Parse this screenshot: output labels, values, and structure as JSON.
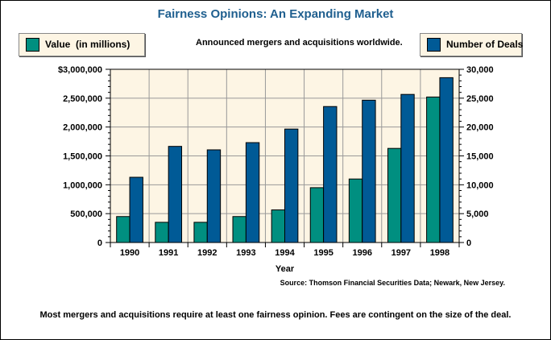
{
  "title": "Fairness Opinions: An Expanding Market",
  "subtitle": "Announced mergers and acquisitions worldwide.",
  "source": "Source: Thomson Financial Securities Data; Newark, New Jersey.",
  "note": "Most mergers and acquisitions require at least one fairness opinion. Fees are contingent on the size of the deal.",
  "chart_data": {
    "type": "bar",
    "xlabel": "Year",
    "categories": [
      "1990",
      "1991",
      "1992",
      "1993",
      "1994",
      "1995",
      "1996",
      "1997",
      "1998"
    ],
    "series": [
      {
        "name": "Value  (in millions)",
        "axis": "left",
        "color": "#008f80",
        "values": [
          450000,
          350000,
          350000,
          450000,
          565000,
          950000,
          1100000,
          1630000,
          2520000
        ]
      },
      {
        "name": "Number of Deals",
        "axis": "right",
        "color": "#005a96",
        "values": [
          11300,
          16650,
          16050,
          17300,
          19650,
          23550,
          24650,
          25650,
          28550
        ]
      }
    ],
    "y_left": {
      "range": [
        0,
        3000000
      ],
      "ticks": [
        "0",
        "500,000",
        "1,000,000",
        "1,500,000",
        "2,000,000",
        "2,500,000",
        "$3,000,000"
      ]
    },
    "y_right": {
      "range": [
        0,
        30000
      ],
      "ticks": [
        "0",
        "5,000",
        "10,000",
        "15,000",
        "20,000",
        "25,000",
        "30,000"
      ]
    },
    "grid": true,
    "plot_background": "#fdf5e4",
    "legend": "top"
  }
}
